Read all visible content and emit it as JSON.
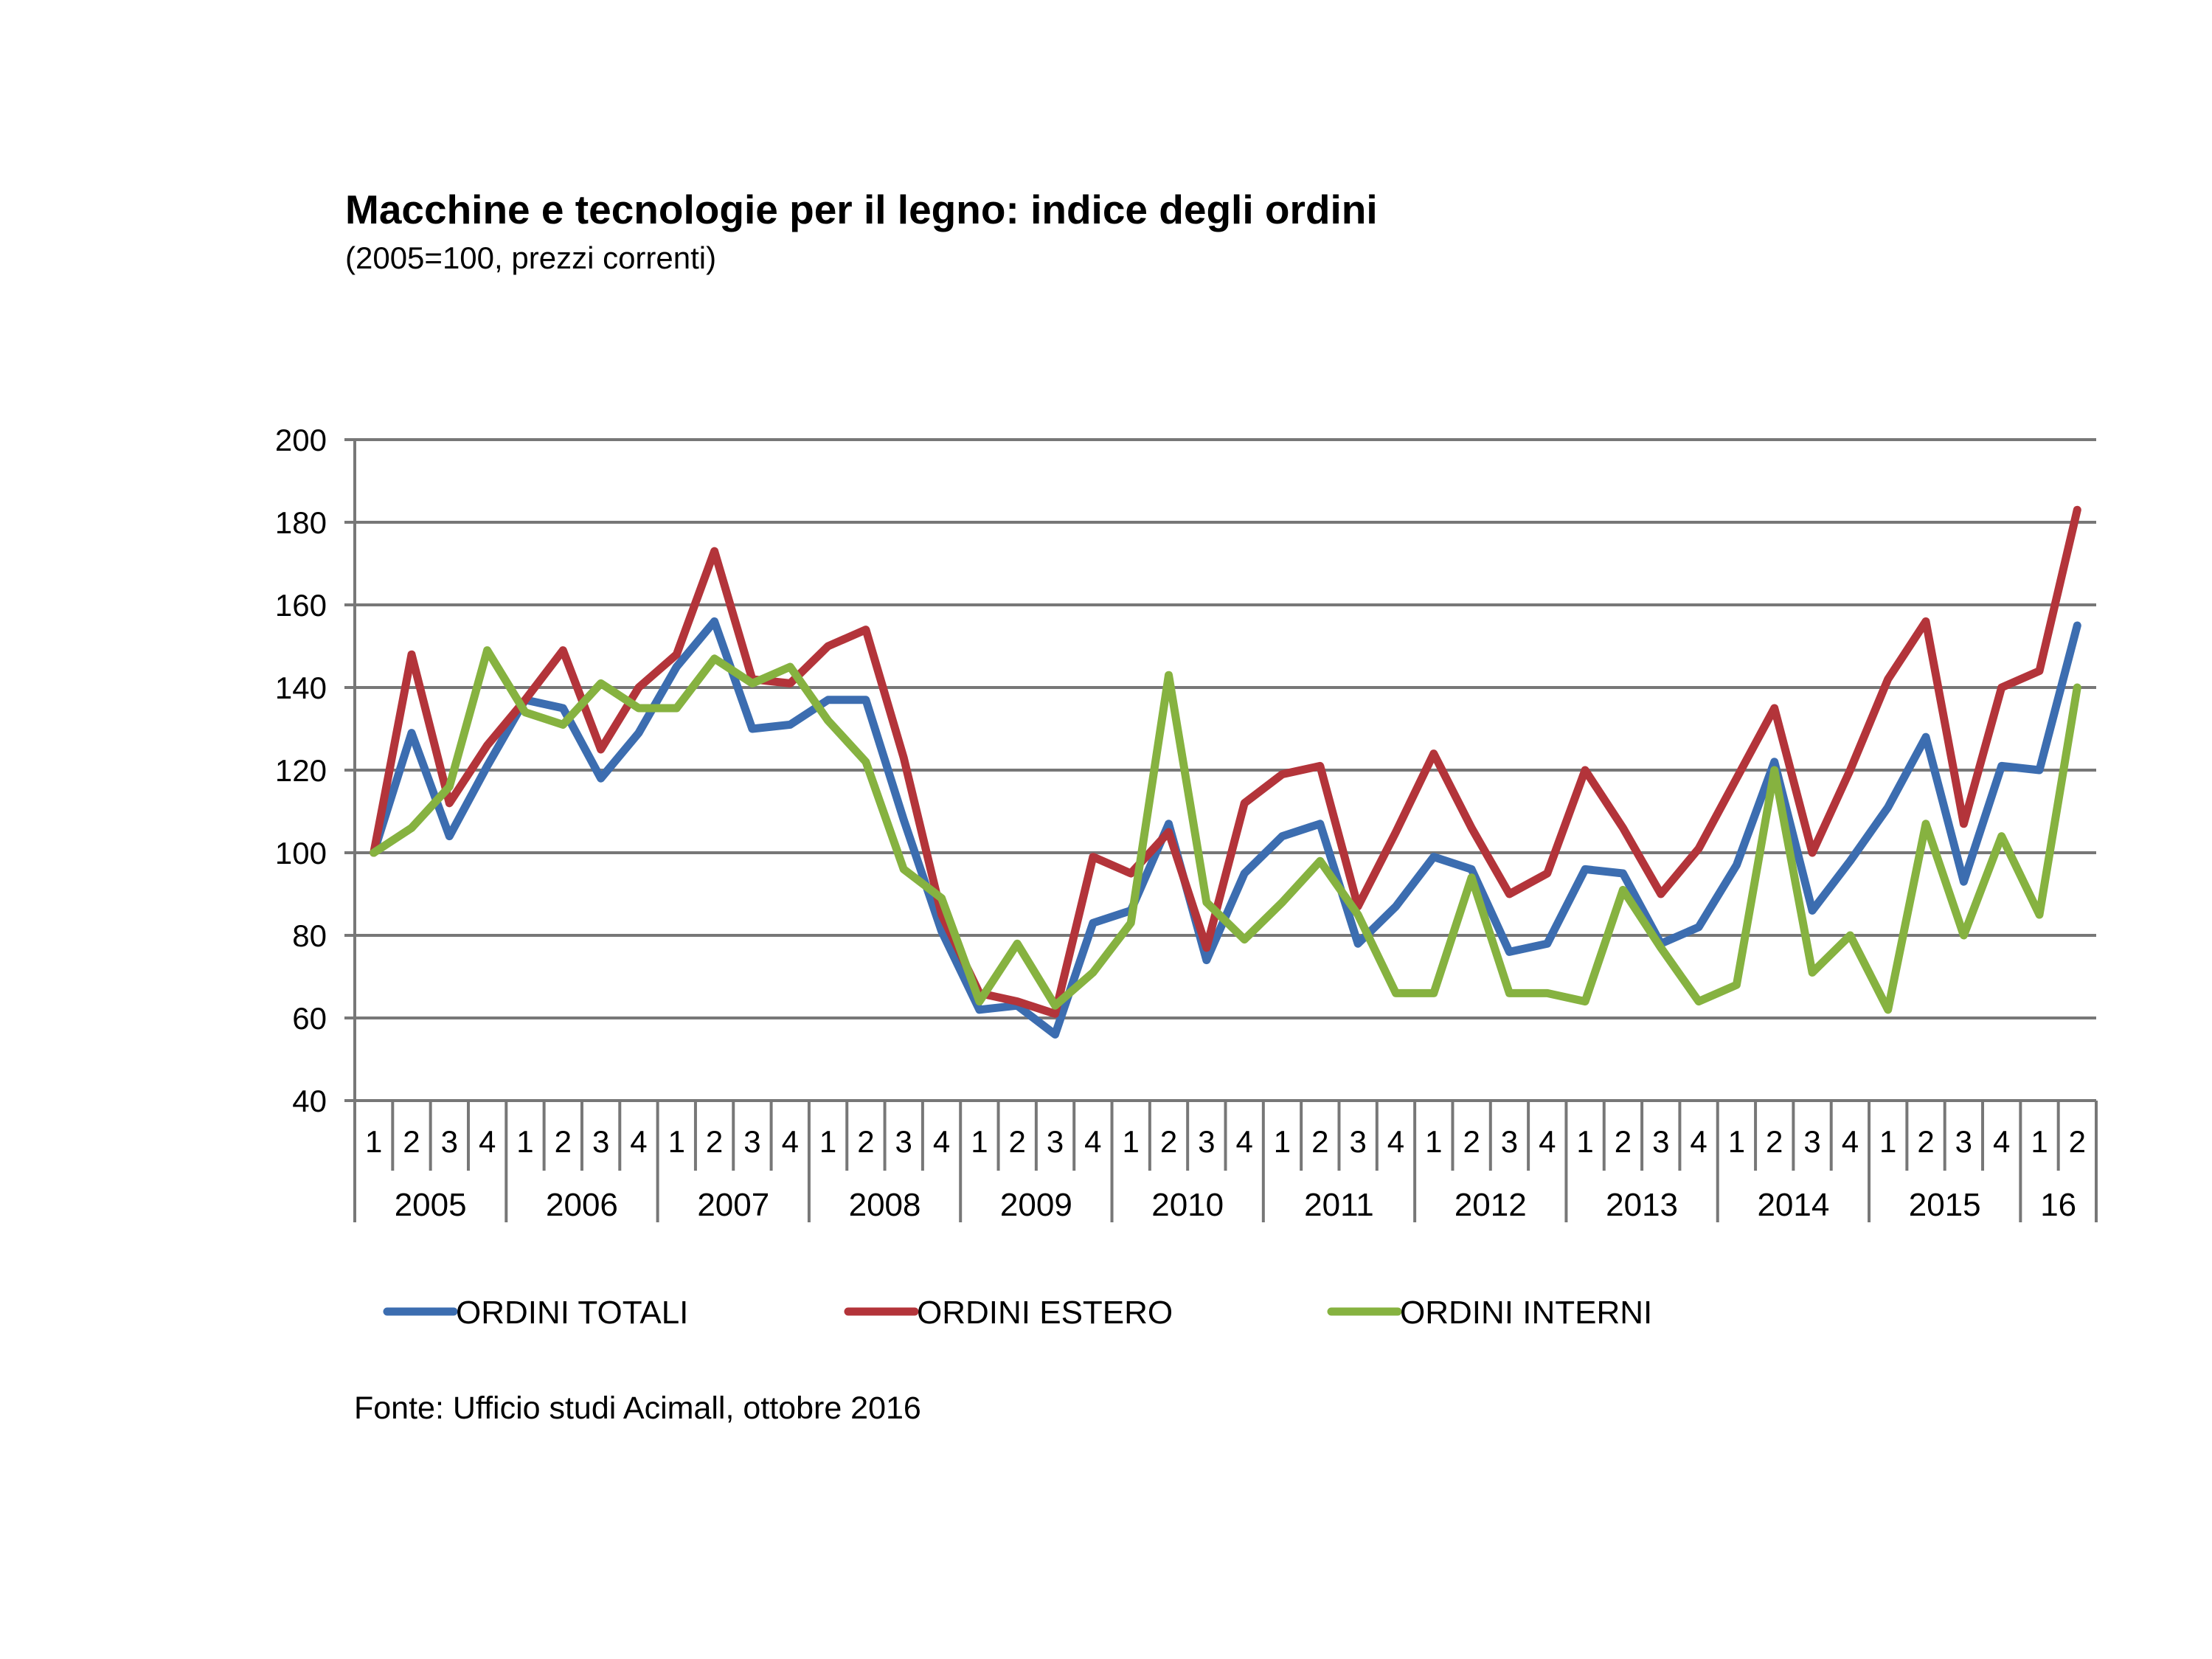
{
  "chart_data": {
    "type": "line",
    "title": "Macchine e tecnologie per il legno: indice degli ordini",
    "subtitle": "(2005=100, prezzi correnti)",
    "source": "Fonte: Ufficio studi Acimall, ottobre 2016",
    "xlabel": "",
    "ylabel": "",
    "ylim": [
      40,
      200
    ],
    "yticks": [
      "40",
      "60",
      "80",
      "100",
      "120",
      "140",
      "160",
      "180",
      "200"
    ],
    "grid": true,
    "legend_position": "bottom",
    "years": [
      {
        "label": "2005",
        "quarters": [
          "1",
          "2",
          "3",
          "4"
        ]
      },
      {
        "label": "2006",
        "quarters": [
          "1",
          "2",
          "3",
          "4"
        ]
      },
      {
        "label": "2007",
        "quarters": [
          "1",
          "2",
          "3",
          "4"
        ]
      },
      {
        "label": "2008",
        "quarters": [
          "1",
          "2",
          "3",
          "4"
        ]
      },
      {
        "label": "2009",
        "quarters": [
          "1",
          "2",
          "3",
          "4"
        ]
      },
      {
        "label": "2010",
        "quarters": [
          "1",
          "2",
          "3",
          "4"
        ]
      },
      {
        "label": "2011",
        "quarters": [
          "1",
          "2",
          "3",
          "4"
        ]
      },
      {
        "label": "2012",
        "quarters": [
          "1",
          "2",
          "3",
          "4"
        ]
      },
      {
        "label": "2013",
        "quarters": [
          "1",
          "2",
          "3",
          "4"
        ]
      },
      {
        "label": "2014",
        "quarters": [
          "1",
          "2",
          "3",
          "4"
        ]
      },
      {
        "label": "2015",
        "quarters": [
          "1",
          "2",
          "3",
          "4"
        ]
      },
      {
        "label": "16",
        "quarters": [
          "1",
          "2"
        ]
      }
    ],
    "series": [
      {
        "name": "ORDINI TOTALI",
        "color": "#3c6db0",
        "values": [
          100,
          129,
          104,
          121,
          137,
          135,
          118,
          129,
          145,
          156,
          130,
          131,
          137,
          137,
          108,
          81,
          62,
          63,
          56,
          83,
          86,
          107,
          74,
          95,
          104,
          107,
          78,
          87,
          99,
          96,
          76,
          78,
          96,
          95,
          78,
          82,
          97,
          122,
          86,
          98,
          111,
          128,
          93,
          121,
          120,
          155
        ]
      },
      {
        "name": "ORDINI ESTERO",
        "color": "#b3343a",
        "values": [
          100,
          148,
          112,
          126,
          137,
          149,
          125,
          140,
          148,
          173,
          142,
          141,
          150,
          154,
          123,
          85,
          66,
          64,
          61,
          99,
          95,
          105,
          77,
          112,
          119,
          121,
          87,
          105,
          124,
          106,
          90,
          95,
          120,
          106,
          90,
          101,
          118,
          135,
          100,
          120,
          142,
          156,
          107,
          140,
          144,
          183
        ]
      },
      {
        "name": "ORDINI INTERNI",
        "color": "#86b240",
        "values": [
          100,
          106,
          116,
          149,
          134,
          131,
          141,
          135,
          135,
          147,
          141,
          145,
          132,
          122,
          96,
          89,
          64,
          78,
          63,
          71,
          83,
          143,
          88,
          79,
          88,
          98,
          85,
          66,
          66,
          94,
          66,
          66,
          64,
          91,
          77,
          64,
          68,
          120,
          71,
          80,
          62,
          107,
          80,
          104,
          85,
          140
        ]
      }
    ]
  }
}
